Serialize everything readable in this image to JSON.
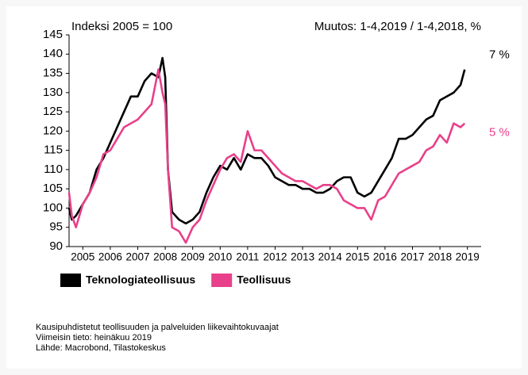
{
  "chart_data": {
    "type": "line",
    "y_axis_label": "Indeksi 2005 = 100",
    "subtitle": "Muutos: 1-4,2019 / 1-4,2018, %",
    "x": [
      2005.0,
      2005.1,
      2005.25,
      2005.5,
      2005.75,
      2006.0,
      2006.25,
      2006.5,
      2006.75,
      2007.0,
      2007.25,
      2007.5,
      2007.75,
      2008.0,
      2008.25,
      2008.4,
      2008.5,
      2008.6,
      2008.75,
      2009.0,
      2009.25,
      2009.5,
      2009.75,
      2010.0,
      2010.25,
      2010.5,
      2010.75,
      2011.0,
      2011.25,
      2011.5,
      2011.75,
      2012.0,
      2012.25,
      2012.5,
      2012.75,
      2013.0,
      2013.25,
      2013.5,
      2013.75,
      2014.0,
      2014.25,
      2014.5,
      2014.75,
      2015.0,
      2015.25,
      2015.5,
      2015.75,
      2016.0,
      2016.25,
      2016.5,
      2016.75,
      2017.0,
      2017.25,
      2017.5,
      2017.75,
      2018.0,
      2018.25,
      2018.5,
      2018.75,
      2019.0,
      2019.25,
      2019.4
    ],
    "series": [
      {
        "name": "Teknologiateollisuus",
        "color": "#000000",
        "end_label": "7 %",
        "values": [
          100,
          97,
          98,
          101,
          104,
          110,
          113,
          117,
          121,
          125,
          129,
          129,
          133,
          135,
          134,
          139,
          134,
          110,
          99,
          97,
          96,
          97,
          99,
          104,
          108,
          111,
          110,
          113,
          110,
          114,
          113,
          113,
          111,
          108,
          107,
          106,
          106,
          105,
          105,
          104,
          104,
          105,
          107,
          108,
          108,
          104,
          103,
          104,
          107,
          110,
          113,
          118,
          118,
          119,
          121,
          123,
          124,
          128,
          129,
          130,
          132,
          136
        ]
      },
      {
        "name": "Teollisuus",
        "color": "#e8408a",
        "end_label": "5 %",
        "values": [
          104,
          98,
          95,
          101,
          104,
          108,
          114,
          115,
          118,
          121,
          122,
          123,
          125,
          127,
          136,
          130,
          127,
          110,
          95,
          94,
          91,
          95,
          97,
          102,
          106,
          110,
          113,
          114,
          112,
          120,
          115,
          115,
          113,
          111,
          109,
          108,
          107,
          107,
          106,
          105,
          106,
          106,
          105,
          102,
          101,
          100,
          100,
          97,
          102,
          103,
          106,
          109,
          110,
          111,
          112,
          115,
          116,
          119,
          117,
          122,
          121,
          122
        ]
      }
    ],
    "xlim": [
      2005,
      2020
    ],
    "xticks": [
      {
        "value": 2005.5,
        "label": "2005"
      },
      {
        "value": 2006.5,
        "label": "2006"
      },
      {
        "value": 2007.5,
        "label": "2007"
      },
      {
        "value": 2008.5,
        "label": "2008"
      },
      {
        "value": 2009.5,
        "label": "2009"
      },
      {
        "value": 2010.5,
        "label": "2010"
      },
      {
        "value": 2011.5,
        "label": "2011"
      },
      {
        "value": 2012.5,
        "label": "2012"
      },
      {
        "value": 2013.5,
        "label": "2013"
      },
      {
        "value": 2014.5,
        "label": "2014"
      },
      {
        "value": 2015.5,
        "label": "2015"
      },
      {
        "value": 2016.5,
        "label": "2016"
      },
      {
        "value": 2017.5,
        "label": "2017"
      },
      {
        "value": 2018.5,
        "label": "2018"
      },
      {
        "value": 2019.5,
        "label": "2019"
      }
    ],
    "ylim": [
      90,
      145
    ],
    "yticks": [
      90,
      95,
      100,
      105,
      110,
      115,
      120,
      125,
      130,
      135,
      140,
      145
    ],
    "notes": [
      "Kausipuhdistetut teollisuuden ja palveluiden liikevaihtokuvaajat",
      "Viimeisin tieto: heinäkuu 2019",
      "Lähde: Macrobond, Tilastokeskus"
    ]
  }
}
